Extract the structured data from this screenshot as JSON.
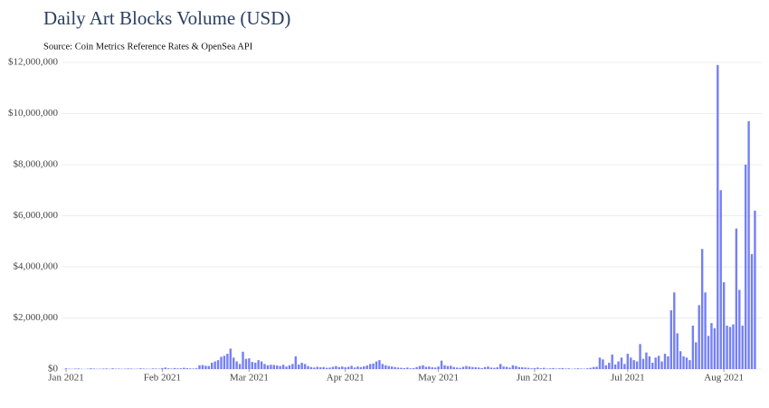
{
  "chart_data": {
    "type": "bar",
    "title": "Daily Art Blocks Volume (USD)",
    "subtitle": "Source: Coin Metrics Reference Rates & OpenSea API",
    "color": "#7480f6",
    "grid": true,
    "ylim": [
      0,
      12000000
    ],
    "yticks": [
      {
        "value": 0,
        "label": "$0"
      },
      {
        "value": 2000000,
        "label": "$2,000,000"
      },
      {
        "value": 4000000,
        "label": "$4,000,000"
      },
      {
        "value": 6000000,
        "label": "$6,000,000"
      },
      {
        "value": 8000000,
        "label": "$8,000,000"
      },
      {
        "value": 10000000,
        "label": "$10,000,000"
      },
      {
        "value": 12000000,
        "label": "$12,000,000"
      }
    ],
    "categories": [
      "Jan 2021",
      null,
      null,
      null,
      null,
      null,
      null,
      null,
      null,
      null,
      null,
      null,
      null,
      null,
      null,
      null,
      null,
      null,
      null,
      null,
      null,
      null,
      null,
      null,
      null,
      null,
      null,
      null,
      null,
      null,
      null,
      "Feb 2021",
      null,
      null,
      null,
      null,
      null,
      null,
      null,
      null,
      null,
      null,
      null,
      null,
      null,
      null,
      null,
      null,
      null,
      null,
      null,
      null,
      null,
      null,
      null,
      null,
      null,
      null,
      null,
      "Mar 2021",
      null,
      null,
      null,
      null,
      null,
      null,
      null,
      null,
      null,
      null,
      null,
      null,
      null,
      null,
      null,
      null,
      null,
      null,
      null,
      null,
      null,
      null,
      null,
      null,
      null,
      null,
      null,
      null,
      null,
      null,
      "Apr 2021",
      null,
      null,
      null,
      null,
      null,
      null,
      null,
      null,
      null,
      null,
      null,
      null,
      null,
      null,
      null,
      null,
      null,
      null,
      null,
      null,
      null,
      null,
      null,
      null,
      null,
      null,
      null,
      null,
      null,
      "May 2021",
      null,
      null,
      null,
      null,
      null,
      null,
      null,
      null,
      null,
      null,
      null,
      null,
      null,
      null,
      null,
      null,
      null,
      null,
      null,
      null,
      null,
      null,
      null,
      null,
      null,
      null,
      null,
      null,
      null,
      null,
      "Jun 2021",
      null,
      null,
      null,
      null,
      null,
      null,
      null,
      null,
      null,
      null,
      null,
      null,
      null,
      null,
      null,
      null,
      null,
      null,
      null,
      null,
      null,
      null,
      null,
      null,
      null,
      null,
      null,
      null,
      null,
      "Jul 2021",
      null,
      null,
      null,
      null,
      null,
      null,
      null,
      null,
      null,
      null,
      null,
      null,
      null,
      null,
      null,
      null,
      null,
      null,
      null,
      null,
      null,
      null,
      null,
      null,
      null,
      null,
      null,
      null,
      null,
      null,
      "Aug 2021",
      null,
      null,
      null,
      null,
      null,
      null,
      null,
      null,
      null,
      null
    ],
    "values": [
      30000,
      15000,
      10000,
      20000,
      25000,
      10000,
      5000,
      15000,
      30000,
      20000,
      10000,
      15000,
      20000,
      25000,
      10000,
      30000,
      15000,
      20000,
      10000,
      15000,
      25000,
      20000,
      10000,
      15000,
      30000,
      20000,
      15000,
      10000,
      25000,
      20000,
      15000,
      40000,
      60000,
      30000,
      20000,
      40000,
      25000,
      30000,
      50000,
      35000,
      25000,
      20000,
      30000,
      150000,
      160000,
      130000,
      120000,
      250000,
      300000,
      350000,
      480000,
      520000,
      600000,
      800000,
      450000,
      300000,
      200000,
      680000,
      400000,
      420000,
      280000,
      250000,
      350000,
      300000,
      200000,
      150000,
      170000,
      160000,
      140000,
      120000,
      170000,
      100000,
      150000,
      200000,
      500000,
      180000,
      250000,
      200000,
      120000,
      80000,
      60000,
      90000,
      70000,
      80000,
      50000,
      60000,
      90000,
      120000,
      80000,
      100000,
      70000,
      90000,
      130000,
      60000,
      100000,
      80000,
      110000,
      140000,
      200000,
      220000,
      300000,
      350000,
      200000,
      150000,
      120000,
      100000,
      80000,
      60000,
      50000,
      40000,
      60000,
      30000,
      40000,
      80000,
      120000,
      150000,
      90000,
      100000,
      70000,
      60000,
      100000,
      330000,
      150000,
      120000,
      130000,
      80000,
      60000,
      50000,
      90000,
      120000,
      100000,
      80000,
      70000,
      60000,
      40000,
      80000,
      100000,
      60000,
      50000,
      70000,
      200000,
      100000,
      90000,
      60000,
      150000,
      120000,
      80000,
      70000,
      60000,
      50000,
      30000,
      40000,
      60000,
      30000,
      50000,
      20000,
      30000,
      40000,
      20000,
      30000,
      40000,
      20000,
      30000,
      10000,
      20000,
      30000,
      20000,
      15000,
      30000,
      50000,
      80000,
      90000,
      450000,
      380000,
      150000,
      250000,
      570000,
      180000,
      300000,
      450000,
      200000,
      600000,
      450000,
      350000,
      300000,
      980000,
      400000,
      650000,
      500000,
      250000,
      450000,
      520000,
      300000,
      600000,
      500000,
      2300000,
      3000000,
      1400000,
      700000,
      500000,
      450000,
      350000,
      1700000,
      1050000,
      2500000,
      4700000,
      3000000,
      1300000,
      1800000,
      1600000,
      11900000,
      7000000,
      3400000,
      1700000,
      1650000,
      1750000,
      5500000,
      3100000,
      1700000,
      8000000,
      9700000,
      4500000,
      6200000
    ]
  }
}
